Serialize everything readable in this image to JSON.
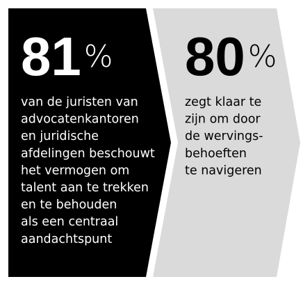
{
  "panels": [
    {
      "number": 81,
      "unit": "%",
      "lines": [
        "van de juristen van",
        "advocatenkantoren",
        "en juridische",
        "afdelingen beschouwt",
        "het vermogen om",
        "talent aan te trekken",
        "en te behouden",
        "als een centraal",
        "aandachtspunt"
      ]
    },
    {
      "number": 80,
      "unit": "%",
      "lines": [
        "zegt klaar te",
        "zijn om door",
        "de wervings-",
        "behoeften",
        "te navigeren"
      ]
    }
  ]
}
